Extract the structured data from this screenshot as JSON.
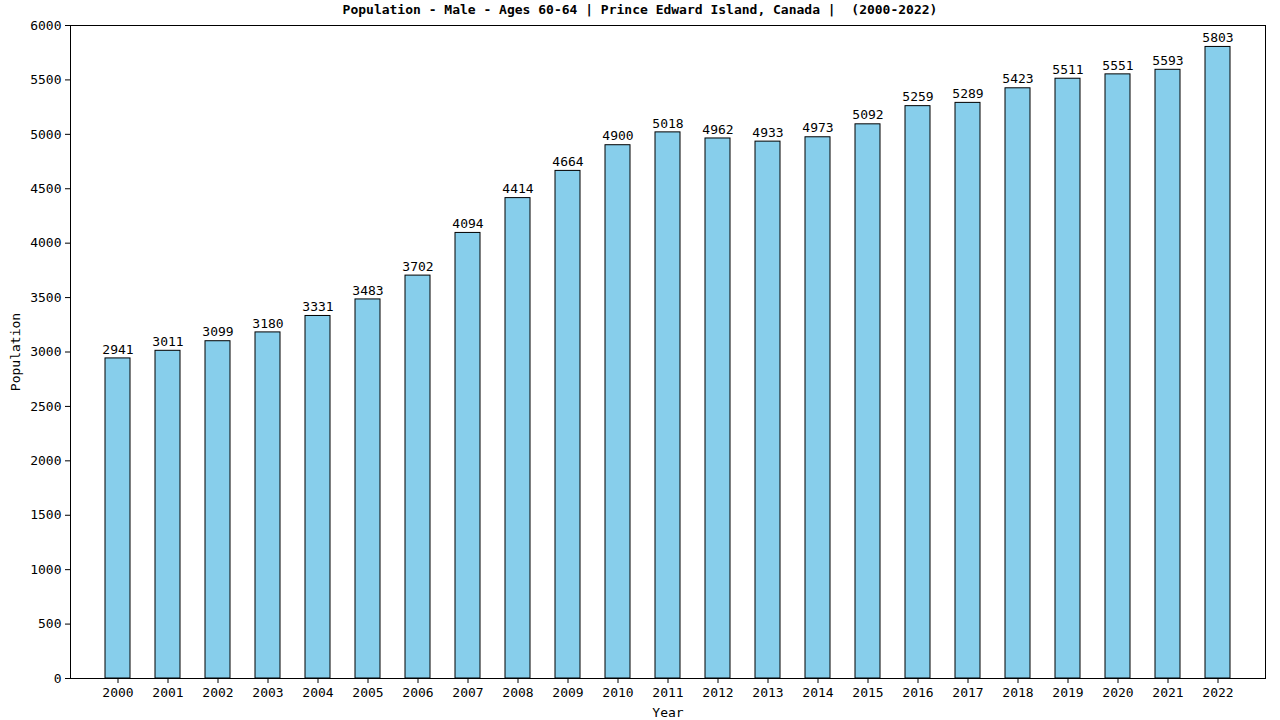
{
  "chart_data": {
    "type": "bar",
    "title": "Population - Male - Ages 60-64 | Prince Edward Island, Canada |  (2000-2022)",
    "x_label": "Year",
    "y_label": "Population",
    "categories": [
      "2000",
      "2001",
      "2002",
      "2003",
      "2004",
      "2005",
      "2006",
      "2007",
      "2008",
      "2009",
      "2010",
      "2011",
      "2012",
      "2013",
      "2014",
      "2015",
      "2016",
      "2017",
      "2018",
      "2019",
      "2020",
      "2021",
      "2022"
    ],
    "values": [
      2941,
      3011,
      3099,
      3180,
      3331,
      3483,
      3702,
      4094,
      4414,
      4664,
      4900,
      5018,
      4962,
      4933,
      4973,
      5092,
      5259,
      5289,
      5423,
      5511,
      5551,
      5593,
      5803
    ],
    "color": "#87ceeb",
    "ylim": [
      0,
      6000
    ],
    "yticks": [
      0,
      500,
      1000,
      1500,
      2000,
      2500,
      3000,
      3500,
      4000,
      4500,
      5000,
      5500,
      6000
    ],
    "grid": false,
    "data_labels": true
  }
}
